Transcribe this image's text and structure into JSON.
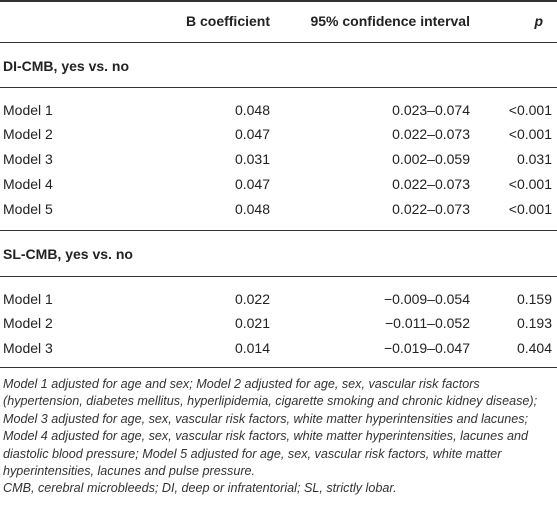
{
  "table": {
    "headers": {
      "col1": "",
      "col2": "B coefficient",
      "col3": "95% confidence interval",
      "col4": "p"
    },
    "sections": [
      {
        "title": "DI-CMB, yes vs. no",
        "rows": [
          {
            "model": "Model 1",
            "b": "0.048",
            "ci": "0.023–0.074",
            "p": "<0.001"
          },
          {
            "model": "Model 2",
            "b": "0.047",
            "ci": "0.022–0.073",
            "p": "<0.001"
          },
          {
            "model": "Model 3",
            "b": "0.031",
            "ci": "0.002–0.059",
            "p": "0.031"
          },
          {
            "model": "Model 4",
            "b": "0.047",
            "ci": "0.022–0.073",
            "p": "<0.001"
          },
          {
            "model": "Model 5",
            "b": "0.048",
            "ci": "0.022–0.073",
            "p": "<0.001"
          }
        ]
      },
      {
        "title": "SL-CMB, yes vs. no",
        "rows": [
          {
            "model": "Model 1",
            "b": "0.022",
            "ci": "−0.009–0.054",
            "p": "0.159"
          },
          {
            "model": "Model 2",
            "b": "0.021",
            "ci": "−0.011–0.052",
            "p": "0.193"
          },
          {
            "model": "Model 3",
            "b": "0.014",
            "ci": "−0.019–0.047",
            "p": "0.404"
          }
        ]
      }
    ]
  },
  "footnotes": {
    "models": "Model 1 adjusted for age and sex; Model 2 adjusted for age, sex, vascular risk factors (hypertension, diabetes mellitus, hyperlipidemia, cigarette smoking and chronic kidney disease); Model 3 adjusted for age, sex, vascular risk factors, white matter hyperintensities and lacunes; Model 4 adjusted for age, sex, vascular risk factors, white matter hyperintensities, lacunes and diastolic blood pressure; Model 5 adjusted for age, sex, vascular risk factors, white matter hyperintensities, lacunes and pulse pressure.",
    "abbreviations": "CMB, cerebral microbleeds; DI, deep or infratentorial; SL, strictly lobar."
  }
}
